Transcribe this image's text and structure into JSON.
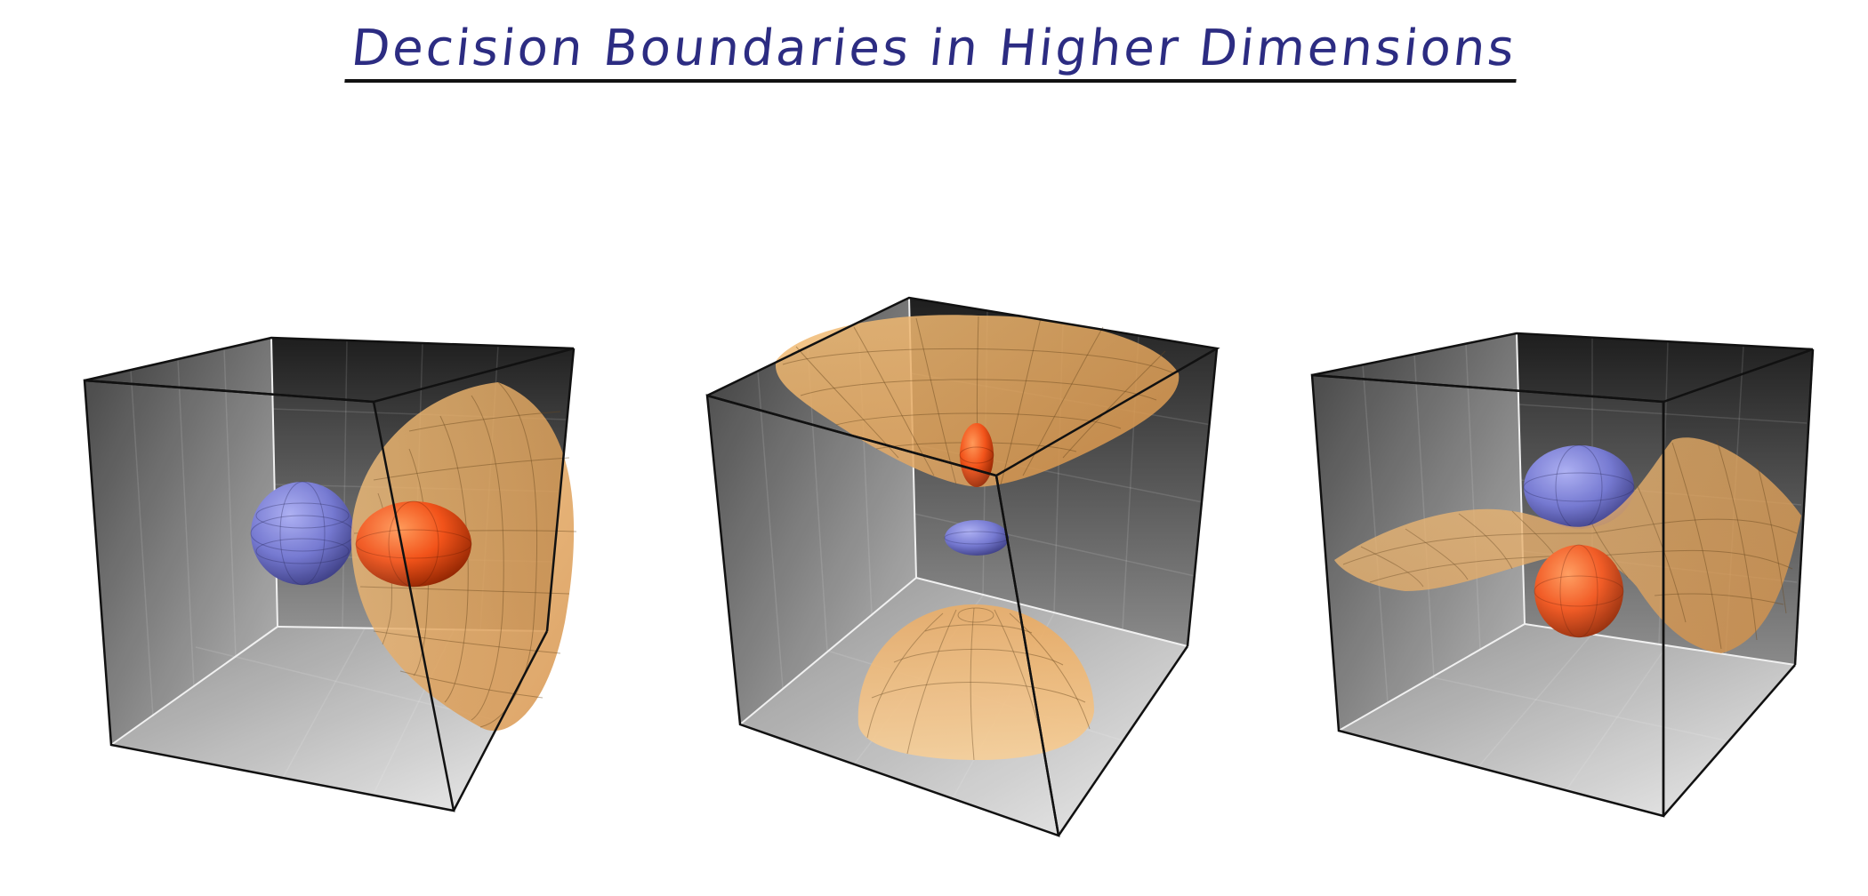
{
  "title": "Decision Boundaries in Higher Dimensions",
  "colors": {
    "title_text": "#2c2c82",
    "box_dark": "#2a2a2a",
    "box_light": "#d8d8d8",
    "surface": "#e8a860",
    "class_blue": "#7a7fd8",
    "class_red": "#ff5a1e"
  },
  "panels": [
    {
      "name": "panel-ellipsoid-boundary",
      "surface": "paraboloid-shell",
      "blue_class": "sphere-left",
      "red_class": "ellipsoid-center"
    },
    {
      "name": "panel-hyperboloid-boundary",
      "surface": "two-sheet-hyperboloid",
      "blue_class": "small-ellipsoid-center",
      "red_class": "ellipsoid-upper"
    },
    {
      "name": "panel-saddle-boundary",
      "surface": "saddle-sheet",
      "blue_class": "ellipsoid-upper",
      "red_class": "sphere-lower"
    }
  ]
}
